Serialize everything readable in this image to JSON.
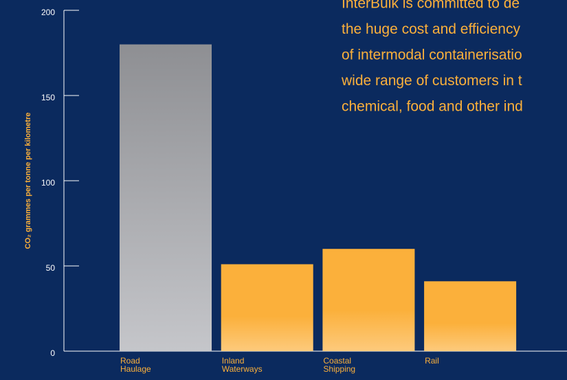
{
  "chart_data": {
    "type": "bar",
    "ylabel": "CO₂ grammes per tonne per kilometre",
    "categories": [
      "Road Haulage",
      "Inland Waterways",
      "Coastal Shipping",
      "Rail"
    ],
    "values": [
      180,
      51,
      60,
      41
    ],
    "colors": [
      "#a3a4a8",
      "#fbb03b",
      "#fbb03b",
      "#fbb03b"
    ],
    "ylim": [
      0,
      200
    ],
    "yticks": [
      0,
      50,
      100,
      150,
      200
    ],
    "grid": false,
    "annotation_lines": [
      "InterBulk is committed to de",
      "the huge cost and efficiency",
      "of intermodal containerisatio",
      "wide range of customers in t",
      "chemical, food and other ind"
    ]
  }
}
